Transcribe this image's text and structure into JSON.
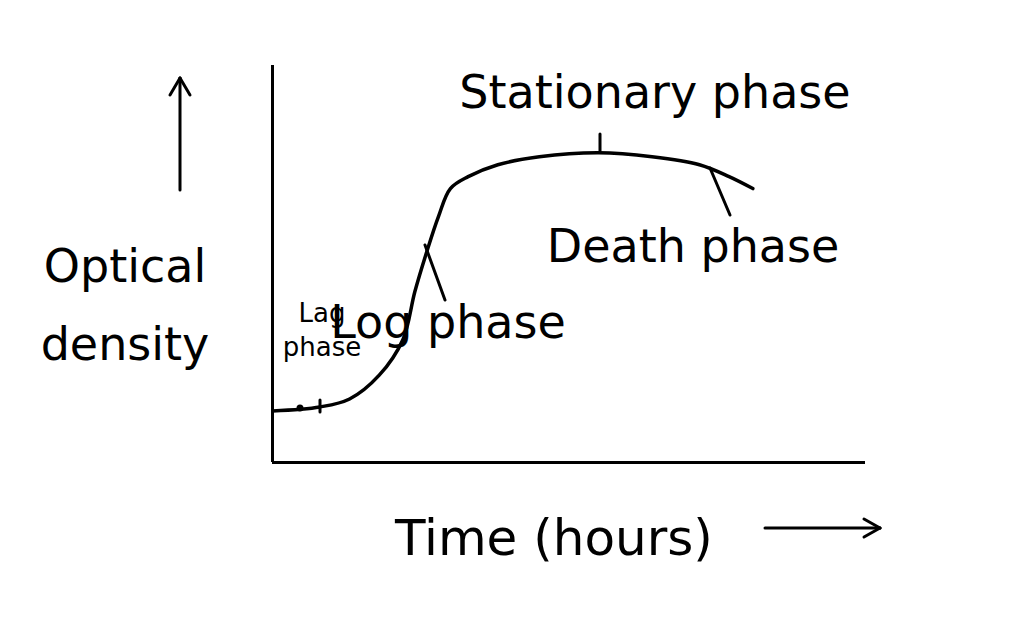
{
  "chart_data": {
    "type": "line",
    "x_label": "Time (hours)",
    "y_label": "Optical density",
    "x": [
      0,
      8,
      13,
      18,
      22,
      24,
      26,
      28,
      30,
      33,
      38,
      45,
      55,
      64,
      72,
      77,
      81
    ],
    "values": [
      13,
      14,
      16,
      22,
      31,
      43,
      53,
      62,
      69,
      72,
      75,
      77,
      78,
      77,
      75,
      72,
      69
    ],
    "xlim": [
      0,
      100
    ],
    "ylim": [
      0,
      100
    ],
    "xticks": [],
    "yticks": [],
    "tick_labels": false,
    "color": "#000000",
    "annotations": [
      "Lag phase",
      "Log phase",
      "Stationary phase",
      "Death phase"
    ]
  }
}
